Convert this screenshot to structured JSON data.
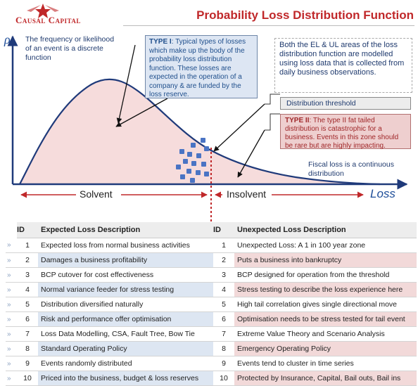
{
  "header": {
    "logo_text": "Causal Capital",
    "title": "Probability Loss Distribution Function"
  },
  "diagram": {
    "y_symbol": "ρ",
    "frequency_note": "The frequency or likelihood of an event is a discrete function",
    "type1": {
      "heading": "TYPE I",
      "text": ": Typical types of losses which make up the body of the probability loss distribution function. These losses are expected in the operation of a company & are funded by the loss reserve."
    },
    "areas_note": "Both the EL & UL areas of the loss distribution function are modelled using loss data that is collected from daily business observations.",
    "threshold_label": "Distribution threshold",
    "type2": {
      "heading": "TYPE II",
      "text": ": The type II fat tailed distribution is catastrophic for a business. Events in this zone should be rare but are highly impacting."
    },
    "fiscal_note": "Fiscal loss is a continuous distribution",
    "solvent_label": "Solvent",
    "insolvent_label": "Insolvent",
    "x_axis_label": "Loss",
    "colors": {
      "curve": "#1f3a7a",
      "fill": "#f6dcdc",
      "threshold_line": "#c0282a",
      "dots": "#4a74c4",
      "axis": "#1f3a7a",
      "title": "#c0282a"
    }
  },
  "table": {
    "headers": {
      "id": "ID",
      "expected": "Expected Loss Description",
      "id2": "ID",
      "unexpected": "Unexpected Loss Description"
    },
    "row_marker": "»",
    "rows": [
      {
        "id": "1",
        "expected": "Expected loss from normal business activities",
        "id2": "1",
        "unexpected": "Unexpected Loss: A 1 in 100 year zone"
      },
      {
        "id": "2",
        "expected": "Damages a business profitability",
        "id2": "2",
        "unexpected": "Puts a business into bankruptcy"
      },
      {
        "id": "3",
        "expected": "BCP cutover for cost effectiveness",
        "id2": "3",
        "unexpected": "BCP designed for operation from the threshold"
      },
      {
        "id": "4",
        "expected": "Normal variance feeder for stress testing",
        "id2": "4",
        "unexpected": "Stress testing to describe the loss experience here"
      },
      {
        "id": "5",
        "expected": "Distribution diversified naturally",
        "id2": "5",
        "unexpected": "High tail correlation gives single directional move"
      },
      {
        "id": "6",
        "expected": "Risk and performance offer optimisation",
        "id2": "6",
        "unexpected": "Optimisation needs to be stress tested for tail event"
      },
      {
        "id": "7",
        "expected": "Loss Data Modelling, CSA, Fault Tree, Bow Tie",
        "id2": "7",
        "unexpected": "Extreme Value Theory and Scenario Analysis"
      },
      {
        "id": "8",
        "expected": "Standard Operating Policy",
        "id2": "8",
        "unexpected": "Emergency Operating Policy"
      },
      {
        "id": "9",
        "expected": "Events randomly distributed",
        "id2": "9",
        "unexpected": "Events tend to cluster in time series"
      },
      {
        "id": "10",
        "expected": "Priced into the business, budget & loss reserves",
        "id2": "10",
        "unexpected": "Protected by Insurance, Capital, Bail outs, Bail ins"
      }
    ]
  }
}
